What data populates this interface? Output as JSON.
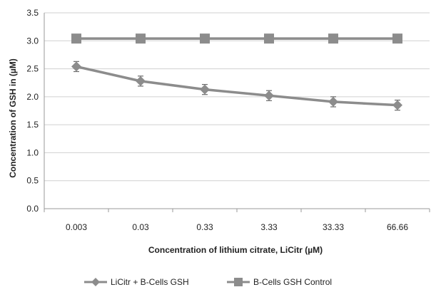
{
  "chart_data": {
    "type": "line",
    "categories": [
      "0.003",
      "0.03",
      "0.33",
      "3.33",
      "33.33",
      "66.66"
    ],
    "xlabel": "Concentration of  lithium citrate, LiCitr (µM)",
    "ylabel": "Concentration of GSH in (µM)",
    "ylim": [
      0,
      3.5
    ],
    "yticks": [
      "0.0",
      "0.5",
      "1.0",
      "1.5",
      "2.0",
      "2.5",
      "3.0",
      "3.5"
    ],
    "grid": "horizontal",
    "legend_position": "bottom",
    "series": [
      {
        "name": "LiCitr + B-Cells GSH",
        "values": [
          2.54,
          2.28,
          2.13,
          2.02,
          1.91,
          1.85
        ],
        "error": [
          0.09,
          0.09,
          0.09,
          0.09,
          0.09,
          0.09
        ],
        "marker": "diamond",
        "color": "#8c8c8c"
      },
      {
        "name": "B-Cells GSH Control",
        "values": [
          3.04,
          3.04,
          3.04,
          3.04,
          3.04,
          3.04
        ],
        "marker": "square",
        "color": "#8c8c8c"
      }
    ]
  }
}
